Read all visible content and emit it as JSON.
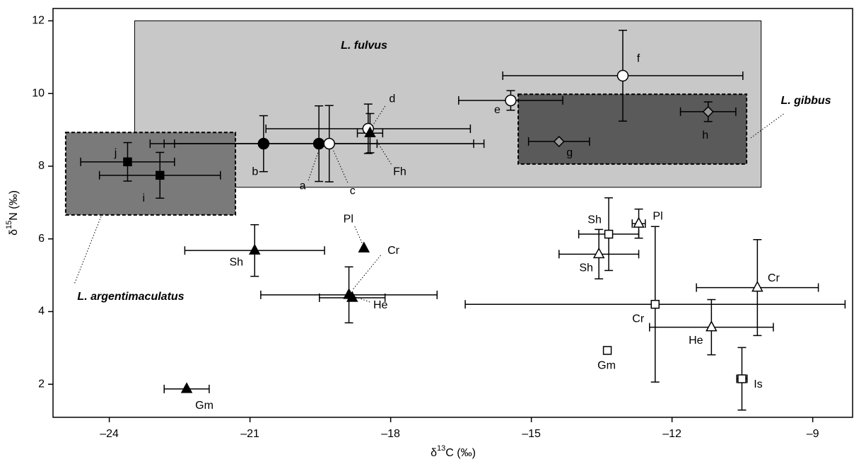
{
  "chart_data": {
    "type": "scatter",
    "x_label": [
      "δ",
      "13",
      "C (‰)"
    ],
    "y_label": [
      "δ",
      "15",
      "N (‰)"
    ],
    "xlim": [
      -25.2,
      -8.15
    ],
    "ylim": [
      1.09,
      12.34
    ],
    "xticks": [
      {
        "value": -24,
        "label": "–24"
      },
      {
        "value": -21,
        "label": "–21"
      },
      {
        "value": -18,
        "label": "–18"
      },
      {
        "value": -15,
        "label": "–15"
      },
      {
        "value": -12,
        "label": "–12"
      },
      {
        "value": -9,
        "label": "–9"
      }
    ],
    "yticks": [
      2,
      4,
      6,
      8,
      10,
      12
    ],
    "regions": [
      {
        "label": "L. fulvus",
        "xlim": [
          -23.46,
          -10.1
        ],
        "ylim": [
          7.42,
          12.0
        ],
        "color": "#c8c8c8",
        "border": "solid"
      },
      {
        "label": "L. gibbus",
        "xlim": [
          -15.28,
          -10.41
        ],
        "ylim": [
          8.06,
          9.98
        ],
        "color": "#5a5a5a",
        "border": "dashed"
      },
      {
        "label": "L. argentimaculatus",
        "xlim": [
          -24.93,
          -21.31
        ],
        "ylim": [
          6.66,
          8.93
        ],
        "color": "#7a7a7a",
        "border": "dashed"
      }
    ],
    "points": [
      {
        "label": "j",
        "x": -23.61,
        "y": 8.12,
        "xerr": 1.0,
        "yerr": 0.53,
        "marker": "square",
        "fill": "#000000"
      },
      {
        "label": "i",
        "x": -22.92,
        "y": 7.75,
        "xerr": 1.29,
        "yerr": 0.63,
        "marker": "square",
        "fill": "#000000"
      },
      {
        "label": "b",
        "x": -20.71,
        "y": 8.62,
        "xerr": 2.42,
        "yerr": 0.77,
        "marker": "circle",
        "fill": "#000000"
      },
      {
        "label": "a",
        "x": -19.53,
        "y": 8.62,
        "xerr": 3.3,
        "yerr": 1.04,
        "marker": "circle",
        "fill": "#000000"
      },
      {
        "label": "c",
        "x": -19.31,
        "y": 8.62,
        "xerr": 3.3,
        "yerr": 1.05,
        "marker": "circle",
        "fill": "#ffffff"
      },
      {
        "label": "d",
        "x": -18.48,
        "y": 9.03,
        "xerr": 2.18,
        "yerr": 0.68,
        "marker": "circle",
        "fill": "#ffffff"
      },
      {
        "label": "Fh",
        "x": -18.44,
        "y": 8.91,
        "xerr": 0.27,
        "yerr": 0.54,
        "marker": "triangle",
        "fill": "#000000"
      },
      {
        "label": "e",
        "x": -15.44,
        "y": 9.81,
        "xerr": 1.11,
        "yerr": 0.27,
        "marker": "circle",
        "fill": "#ffffff"
      },
      {
        "label": "f",
        "x": -13.05,
        "y": 10.49,
        "xerr": 2.56,
        "yerr": 1.25,
        "marker": "circle",
        "fill": "#ffffff"
      },
      {
        "label": "g",
        "x": -14.41,
        "y": 8.68,
        "xerr": 0.65,
        "yerr": null,
        "marker": "diamond",
        "fill": "#999999"
      },
      {
        "label": "h",
        "x": -11.23,
        "y": 9.5,
        "xerr": 0.59,
        "yerr": 0.27,
        "marker": "diamond",
        "fill": "#999999"
      },
      {
        "label": "Sh",
        "x": -20.9,
        "y": 5.68,
        "xerr": 1.49,
        "yerr": 0.71,
        "marker": "triangle",
        "fill": "#000000"
      },
      {
        "label": "Pl",
        "x": -18.57,
        "y": 5.74,
        "xerr": null,
        "yerr": null,
        "marker": "triangle",
        "fill": "#000000"
      },
      {
        "label": "Cr",
        "x": -18.89,
        "y": 4.46,
        "xerr": 1.88,
        "yerr": 0.77,
        "marker": "triangle",
        "fill": "#000000"
      },
      {
        "label": "He",
        "x": -18.82,
        "y": 4.38,
        "xerr": 0.7,
        "yerr": null,
        "marker": "triangle",
        "fill": "#000000"
      },
      {
        "label": "Gm",
        "x": -22.35,
        "y": 1.87,
        "xerr": 0.48,
        "yerr": null,
        "marker": "triangle",
        "fill": "#000000"
      },
      {
        "label": "Pl",
        "x": -12.71,
        "y": 6.42,
        "xerr": 0.14,
        "yerr": 0.4,
        "marker": "triangle",
        "fill": "#ffffff"
      },
      {
        "label": "Sh",
        "x": -13.56,
        "y": 5.58,
        "xerr": 0.85,
        "yerr": 0.68,
        "marker": "triangle",
        "fill": "#ffffff"
      },
      {
        "label": "Cr",
        "x": -10.18,
        "y": 4.66,
        "xerr": 1.3,
        "yerr": 1.32,
        "marker": "triangle",
        "fill": "#ffffff"
      },
      {
        "label": "He",
        "x": -11.16,
        "y": 3.57,
        "xerr": 1.32,
        "yerr": 0.76,
        "marker": "triangle",
        "fill": "#ffffff"
      },
      {
        "label": "Sh",
        "x": -13.35,
        "y": 6.13,
        "xerr": 0.64,
        "yerr": 1.0,
        "marker": "square",
        "fill": "#ffffff"
      },
      {
        "label": "Cr",
        "x": -12.36,
        "y": 4.2,
        "xerr": 4.05,
        "yerr": 2.14,
        "marker": "square",
        "fill": "#ffffff"
      },
      {
        "label": "Gm",
        "x": -13.38,
        "y": 2.93,
        "xerr": null,
        "yerr": null,
        "marker": "square",
        "fill": "#ffffff"
      },
      {
        "label": "Is",
        "x": -10.51,
        "y": 2.15,
        "xerr": 0.11,
        "yerr": 0.86,
        "marker": "square",
        "fill": "#ffffff"
      }
    ]
  }
}
